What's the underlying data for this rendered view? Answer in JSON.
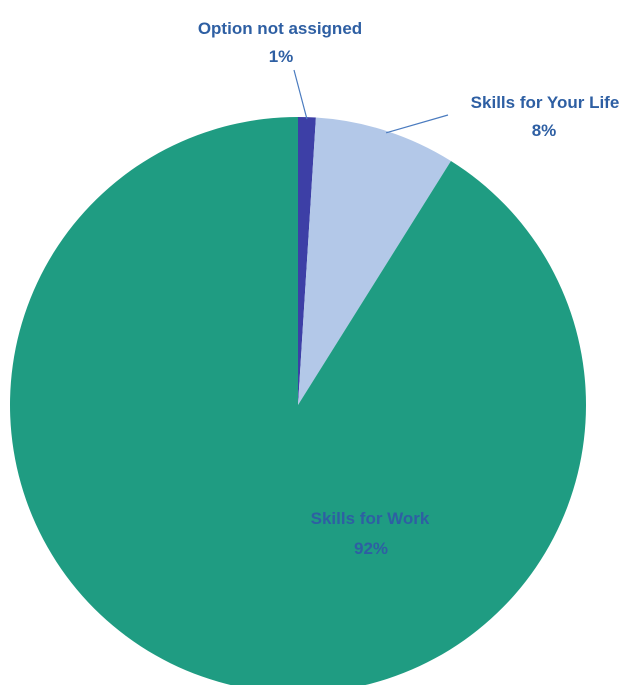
{
  "chart_data": {
    "type": "pie",
    "title": "",
    "slices": [
      {
        "label": "Option not assigned",
        "value": 1,
        "value_label": "1%",
        "color": "#3d3fa6"
      },
      {
        "label": "Skills for Your Life",
        "value": 8,
        "value_label": "8%",
        "color": "#b3c8e8"
      },
      {
        "label": "Skills for Work",
        "value": 92,
        "value_label": "92%",
        "color": "#1f9c82"
      }
    ],
    "start_angle_deg": 0,
    "direction": "clockwise",
    "label_color": "#2e5fa3",
    "leader_line_color": "#4a7bbf"
  }
}
